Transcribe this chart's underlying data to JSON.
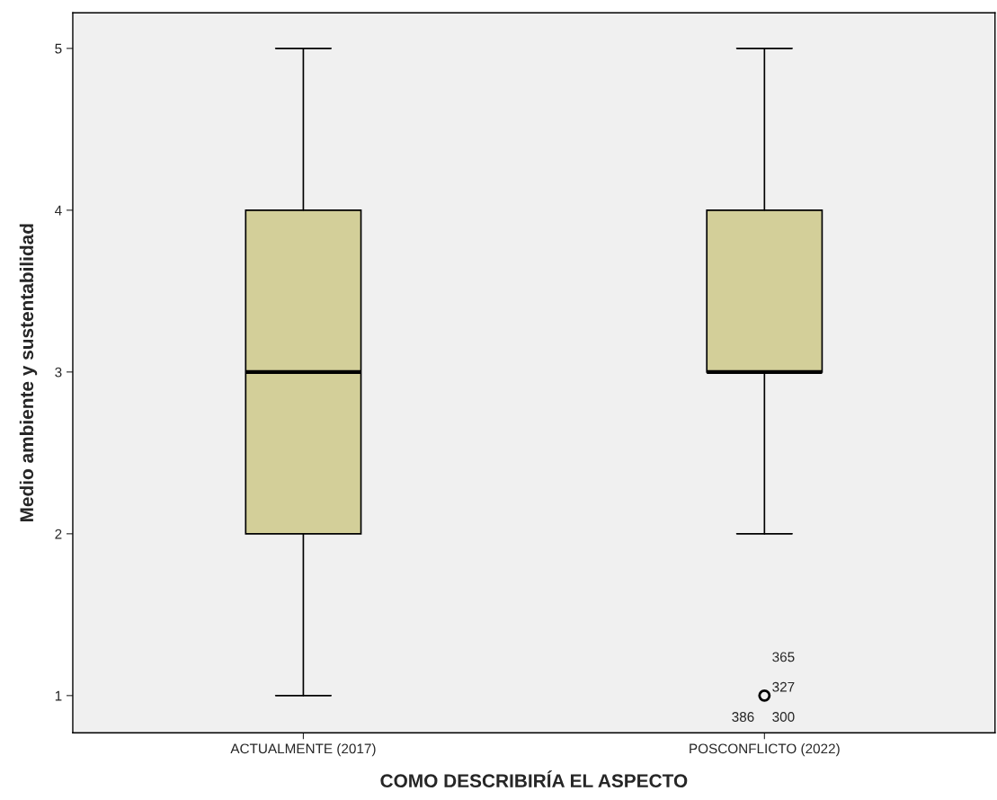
{
  "chart_data": {
    "type": "box",
    "xlabel": "COMO DESCRIBIRÍA EL ASPECTO",
    "ylabel": "Medio ambiente y sustentabilidad",
    "categories": [
      "ACTUALMENTE (2017)",
      "POSCONFLICTO (2022)"
    ],
    "boxes": [
      {
        "low": 1,
        "q1": 2,
        "median": 3,
        "q3": 4,
        "high": 5
      },
      {
        "low": 2,
        "q1": 3,
        "median": 3,
        "q3": 4,
        "high": 5,
        "outliers": [
          1
        ]
      }
    ],
    "color": "#d3cf99",
    "ylim": [
      0.77,
      5.22
    ],
    "yticks": [
      1,
      2,
      3,
      4,
      5
    ],
    "grid": false,
    "annotations": [
      "365",
      "327",
      "386",
      "300"
    ]
  }
}
